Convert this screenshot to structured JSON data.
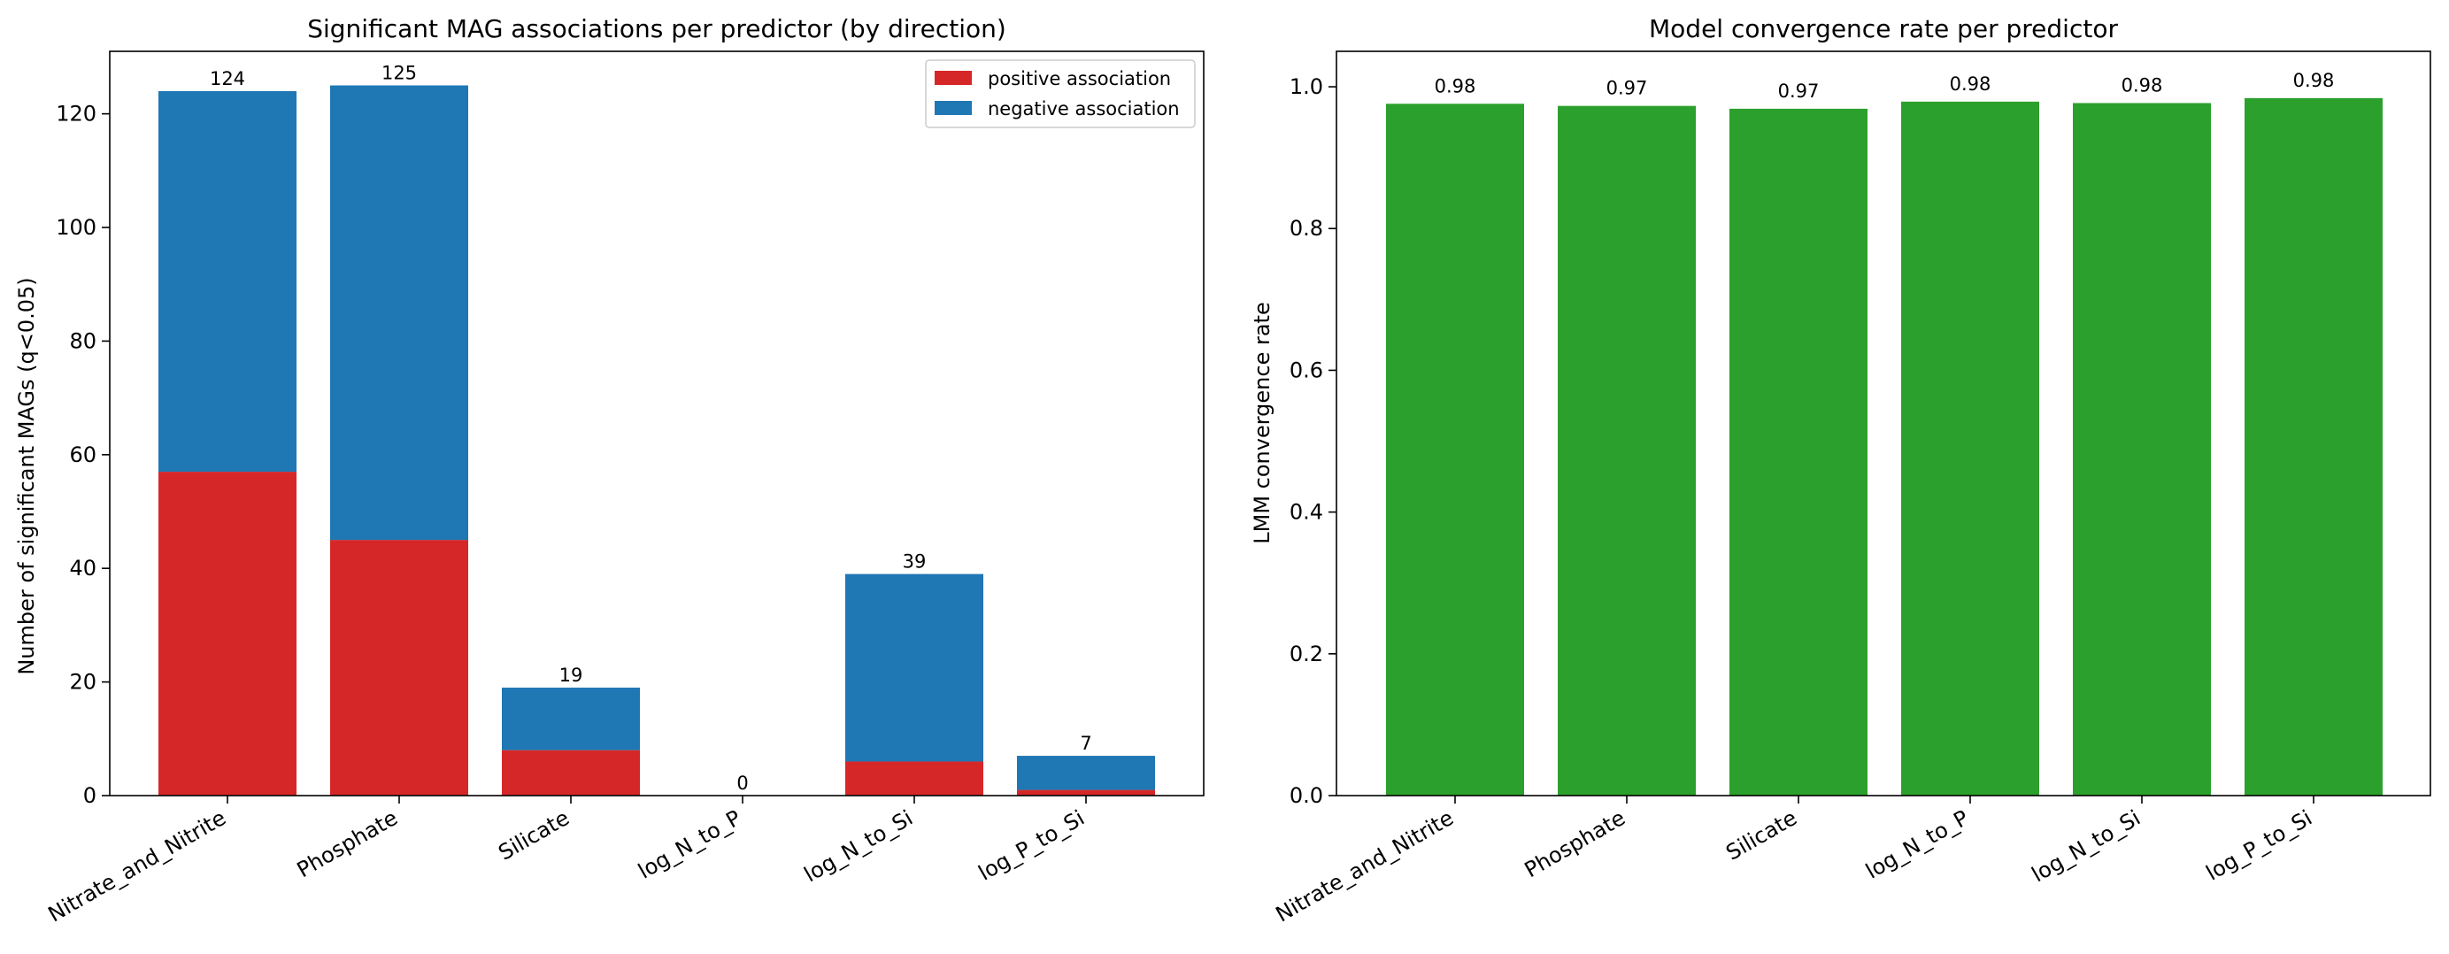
{
  "chart_data": [
    {
      "type": "bar",
      "stacked": true,
      "title": "Significant MAG associations per predictor (by direction)",
      "xlabel": "",
      "ylabel": "Number of significant MAGs (q<0.05)",
      "categories": [
        "Nitrate_and_Nitrite",
        "Phosphate",
        "Silicate",
        "log_N_to_P",
        "log_N_to_Si",
        "log_P_to_Si"
      ],
      "series": [
        {
          "name": "positive association",
          "color": "#d62728",
          "values": [
            57,
            45,
            8,
            0,
            6,
            1
          ]
        },
        {
          "name": "negative association",
          "color": "#1f77b4",
          "values": [
            67,
            80,
            11,
            0,
            33,
            6
          ]
        }
      ],
      "totals": [
        "124",
        "125",
        "19",
        "0",
        "39",
        "7"
      ],
      "ylim": [
        0,
        131
      ],
      "yticks": [
        0,
        20,
        40,
        60,
        80,
        100,
        120
      ],
      "ytick_labels": [
        "0",
        "20",
        "40",
        "60",
        "80",
        "100",
        "120"
      ],
      "legend": "top-right",
      "grid": false
    },
    {
      "type": "bar",
      "title": "Model convergence rate per predictor",
      "xlabel": "",
      "ylabel": "LMM convergence rate",
      "categories": [
        "Nitrate_and_Nitrite",
        "Phosphate",
        "Silicate",
        "log_N_to_P",
        "log_N_to_Si",
        "log_P_to_Si"
      ],
      "color": "#2ca02c",
      "values": [
        0.976,
        0.973,
        0.969,
        0.979,
        0.977,
        0.984
      ],
      "value_labels": [
        "0.98",
        "0.97",
        "0.97",
        "0.98",
        "0.98",
        "0.98"
      ],
      "ylim": [
        0,
        1.05
      ],
      "yticks": [
        0,
        0.2,
        0.4,
        0.6,
        0.8,
        1.0
      ],
      "ytick_labels": [
        "0.0",
        "0.2",
        "0.4",
        "0.6",
        "0.8",
        "1.0"
      ],
      "grid": false
    }
  ]
}
